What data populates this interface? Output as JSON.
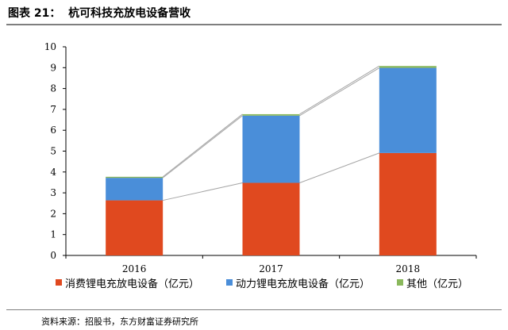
{
  "figure_title": "图表 21：  杭可科技充放电设备营收",
  "source": "资料来源：招股书，东方财富证券研究所",
  "chart_data": {
    "type": "bar",
    "stacked": true,
    "categories": [
      "2016",
      "2017",
      "2018"
    ],
    "series": [
      {
        "name": "消费锂电充放电设备（亿元）",
        "values": [
          2.64,
          3.48,
          4.91
        ],
        "color": "#e0491f"
      },
      {
        "name": "动力锂电充放电设备（亿元）",
        "values": [
          1.08,
          3.22,
          4.08
        ],
        "color": "#4a8ed9"
      },
      {
        "name": "其他（亿元）",
        "values": [
          0.05,
          0.07,
          0.09
        ],
        "color": "#8ab85c"
      }
    ],
    "ylim": [
      0,
      10
    ],
    "yticks": [
      "0",
      "1",
      "2",
      "3",
      "4",
      "5",
      "6",
      "7",
      "8",
      "9",
      "10"
    ],
    "series_lines": true,
    "grid": false,
    "legend_position": "bottom"
  }
}
